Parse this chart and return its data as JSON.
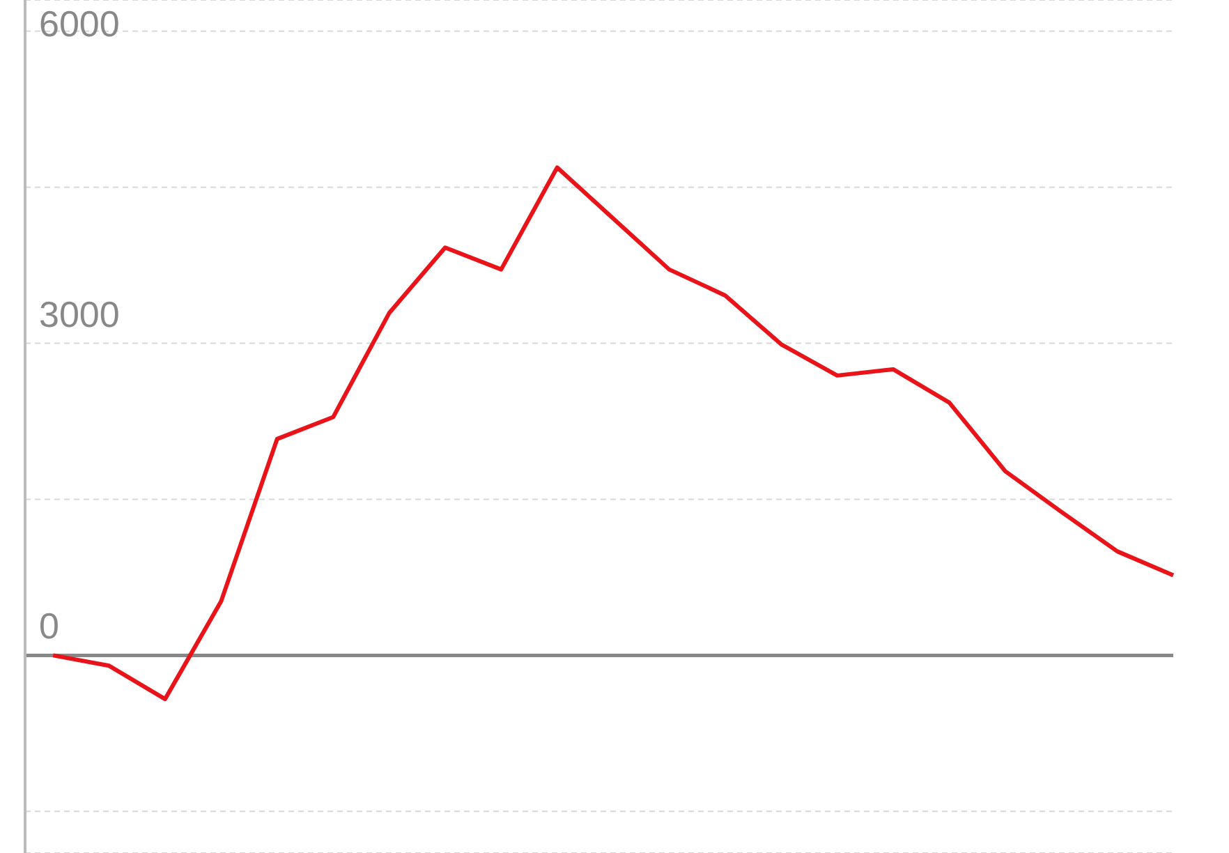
{
  "chart_data": {
    "type": "line",
    "categories": [
      null,
      null,
      null,
      null,
      null,
      null,
      null,
      null,
      null,
      null,
      null,
      null,
      null,
      null,
      null,
      null,
      null,
      null,
      null,
      null,
      null
    ],
    "series": [
      {
        "color": "#e8141a",
        "values": [
          0,
          -100,
          -420,
          520,
          2080,
          2290,
          3290,
          3920,
          3710,
          4690,
          4200,
          3710,
          3460,
          2990,
          2690,
          2750,
          2430,
          1770,
          1380,
          1000,
          770
        ]
      }
    ],
    "ylim": [
      -1900,
      6300
    ],
    "yticks": [
      {
        "value": -1500,
        "label": null
      },
      0,
      {
        "value": 1500,
        "label": null
      },
      3000,
      {
        "value": 4500,
        "label": null
      },
      6000
    ],
    "ref_lines": [
      {
        "axis": "y",
        "value": 0,
        "color": "#888888"
      }
    ],
    "grid": "y",
    "marker": "none",
    "line_style": "solid",
    "tick_labels": "y"
  }
}
